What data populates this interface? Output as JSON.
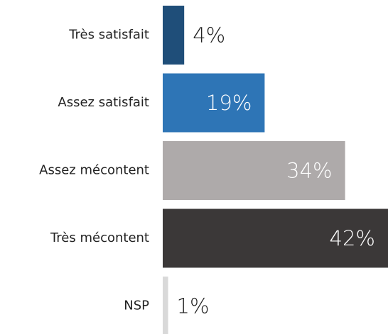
{
  "chart_data": {
    "type": "bar",
    "categories": [
      "Très satisfait",
      "Assez satisfait",
      "Assez mécontent",
      "Très mécontent",
      "NSP"
    ],
    "values": [
      4,
      19,
      34,
      42,
      1
    ],
    "value_labels": [
      "4%",
      "19%",
      "34%",
      "42%",
      "1%"
    ],
    "colors": [
      "#1f4e79",
      "#2e75b6",
      "#aeaaaa",
      "#3b3838",
      "#d9d9d9"
    ]
  }
}
